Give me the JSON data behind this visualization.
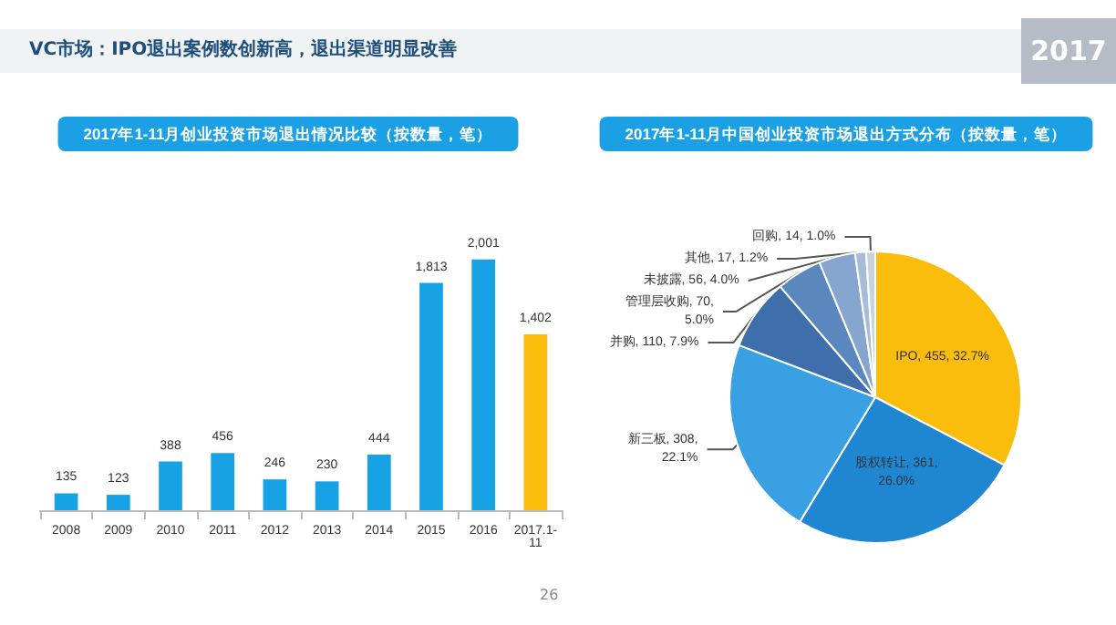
{
  "chart_data": [
    {
      "type": "bar",
      "title": "2017年1-11月创业投资市场退出情况比较（按数量，笔）",
      "annotations": [
        "VC市场：IPO退出案例数创新高，退出渠道明显改善",
        "2017",
        "26"
      ],
      "categories": [
        "2008",
        "2009",
        "2010",
        "2011",
        "2012",
        "2013",
        "2014",
        "2015",
        "2016",
        "2017.1-\n11"
      ],
      "values": [
        135,
        123,
        388,
        456,
        246,
        230,
        444,
        1813,
        2001,
        1402
      ],
      "colors": [
        "#17a2e6",
        "#17a2e6",
        "#17a2e6",
        "#17a2e6",
        "#17a2e6",
        "#17a2e6",
        "#17a2e6",
        "#17a2e6",
        "#17a2e6",
        "#fbbd0c"
      ],
      "value_labels": [
        "135",
        "123",
        "388",
        "456",
        "246",
        "230",
        "444",
        "1,813",
        "2,001",
        "1,402"
      ],
      "legend": false
    },
    {
      "type": "pie",
      "title": "2017年1-11月中国创业投资市场退出方式分布（按数量，笔）",
      "categories": [
        "IPO",
        "股权转让",
        "新三板",
        "并购",
        "管理层收购",
        "未披露",
        "其他",
        "回购"
      ],
      "values": [
        455,
        361,
        308,
        110,
        70,
        56,
        17,
        14
      ],
      "value_labels": [
        "455, 32.7%",
        "361,\n26.0%",
        "308,\n22.1%",
        "110, 7.9%",
        "70,\n5.0%",
        "56, 4.0%",
        "17, 1.2%",
        "14, 1.0%"
      ],
      "colors": [
        "#fbbd0c",
        "#1f86d2",
        "#3aa0e4",
        "#3e6fab",
        "#5a87bd",
        "#86a6cf",
        "#a8bcd8",
        "#c8d3e2"
      ],
      "legend": false
    }
  ]
}
